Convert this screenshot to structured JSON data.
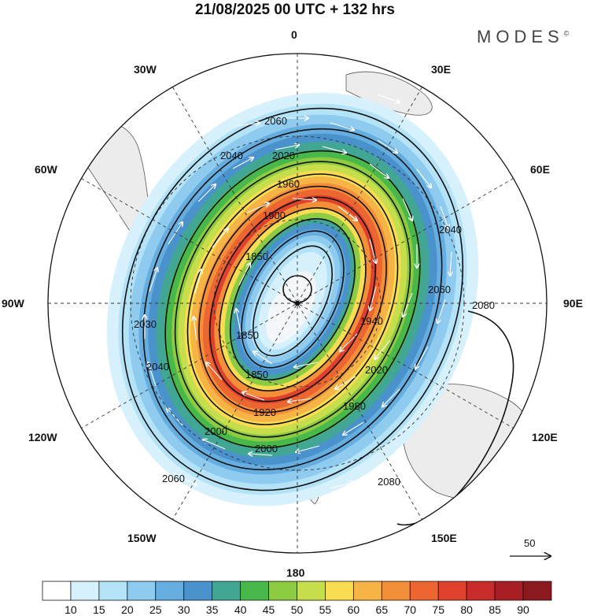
{
  "title": "21/08/2025  00 UTC  + 132 hrs",
  "brand": "MODES",
  "brand_mark": "©",
  "longitude_labels": {
    "n": "0",
    "s": "180",
    "e": "90E",
    "w": "90W",
    "e30": "30E",
    "e60": "60E",
    "e120": "120E",
    "e150": "150E",
    "w30": "30W",
    "w60": "60W",
    "w120": "120W",
    "w150": "150W"
  },
  "contour_labels": {
    "c2060a": "2060",
    "c2040a": "2040",
    "c2020a": "2020",
    "c1960": "1960",
    "c1900": "1900",
    "c1850a": "1850",
    "c1850b": "1850",
    "c1850c": "1850",
    "c1920": "1920",
    "c2000a": "2000",
    "c2000b": "2000",
    "c1980": "1980",
    "c2040b": "2040",
    "c2060b": "2060",
    "c2080a": "2080",
    "c2080b": "2080",
    "c2030": "2030",
    "c2040c": "2040",
    "c2060c": "2060",
    "c1940": "1940",
    "c2020b": "2020"
  },
  "vector_legend": {
    "value": "50"
  },
  "colorbar": {
    "labels": [
      "10",
      "15",
      "20",
      "25",
      "30",
      "35",
      "40",
      "45",
      "50",
      "55",
      "60",
      "65",
      "70",
      "75",
      "80",
      "85",
      "90"
    ],
    "colors": [
      "#ffffff",
      "#d6f1fb",
      "#b4e2f7",
      "#8ecbee",
      "#66ade0",
      "#4a92cc",
      "#42a695",
      "#49b84b",
      "#8ccb42",
      "#c6dd4c",
      "#f8dc52",
      "#f7b446",
      "#f48f39",
      "#ec6631",
      "#e0412c",
      "#c92a2a",
      "#a91d24",
      "#8a1a1e"
    ]
  }
}
